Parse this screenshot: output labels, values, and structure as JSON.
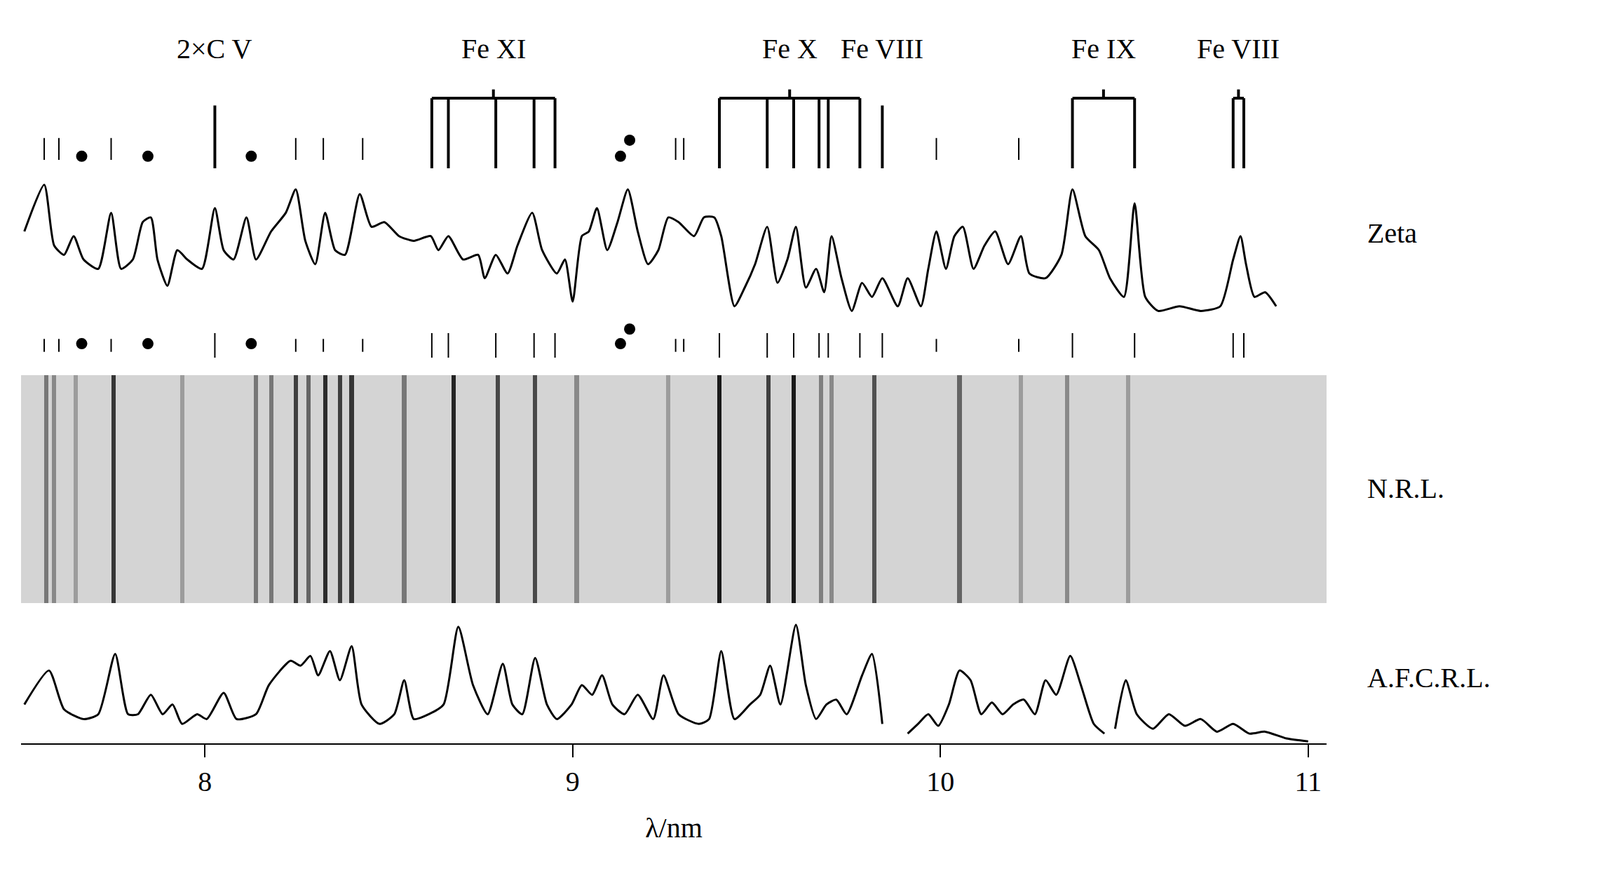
{
  "chart_data": [
    {
      "type": "line",
      "title": "Zeta",
      "color": "#000000",
      "tick_labels": false,
      "xlim": [
        7.5,
        11.05
      ],
      "xticks": [
        8,
        9,
        10,
        11
      ],
      "ylim": [
        0,
        150
      ],
      "x": [
        7.509,
        7.563,
        7.59,
        7.617,
        7.643,
        7.67,
        7.71,
        7.745,
        7.772,
        7.804,
        7.831,
        7.853,
        7.871,
        7.898,
        7.925,
        7.952,
        7.992,
        8.027,
        8.051,
        8.078,
        8.113,
        8.139,
        8.18,
        8.22,
        8.247,
        8.273,
        8.3,
        8.327,
        8.354,
        8.381,
        8.421,
        8.453,
        8.488,
        8.528,
        8.568,
        8.614,
        8.635,
        8.662,
        8.702,
        8.743,
        8.761,
        8.791,
        8.823,
        8.85,
        8.89,
        8.917,
        8.957,
        8.979,
        9.0,
        9.025,
        9.044,
        9.066,
        9.094,
        9.122,
        9.15,
        9.177,
        9.205,
        9.233,
        9.26,
        9.288,
        9.33,
        9.357,
        9.385,
        9.404,
        9.44,
        9.468,
        9.496,
        9.529,
        9.557,
        9.584,
        9.607,
        9.634,
        9.662,
        9.684,
        9.704,
        9.731,
        9.759,
        9.787,
        9.814,
        9.842,
        9.884,
        9.911,
        9.947,
        9.967,
        9.989,
        10.015,
        10.038,
        10.061,
        10.09,
        10.12,
        10.149,
        10.184,
        10.219,
        10.242,
        10.286,
        10.329,
        10.359,
        10.394,
        10.431,
        10.461,
        10.499,
        10.528,
        10.557,
        10.592,
        10.65,
        10.708,
        10.761,
        10.796,
        10.816,
        10.831,
        10.854,
        10.883,
        10.913
      ],
      "values": [
        90,
        140,
        75,
        65,
        85,
        60,
        50,
        110,
        50,
        60,
        100,
        105,
        60,
        32,
        70,
        60,
        50,
        115,
        70,
        60,
        105,
        60,
        90,
        110,
        135,
        80,
        55,
        110,
        70,
        65,
        130,
        95,
        100,
        85,
        80,
        85,
        70,
        85,
        60,
        65,
        40,
        65,
        45,
        75,
        110,
        70,
        45,
        60,
        15,
        85,
        90,
        115,
        70,
        100,
        135,
        90,
        55,
        70,
        105,
        100,
        85,
        105,
        105,
        85,
        10,
        30,
        55,
        95,
        35,
        60,
        95,
        30,
        50,
        25,
        85,
        40,
        5,
        35,
        20,
        40,
        10,
        40,
        10,
        50,
        90,
        50,
        85,
        95,
        50,
        75,
        90,
        55,
        85,
        45,
        40,
        65,
        135,
        85,
        70,
        40,
        20,
        120,
        20,
        5,
        10,
        5,
        10,
        60,
        85,
        55,
        20,
        25,
        10
      ],
      "line_ids": [
        {
          "label": "2×C V",
          "x": [
            8.027
          ]
        },
        {
          "label": "Fe XI",
          "x": [
            8.617,
            8.662,
            8.791,
            8.895,
            8.952
          ]
        },
        {
          "label": "Fe X",
          "x": [
            9.399,
            9.529,
            9.601,
            9.67,
            9.695,
            9.781
          ]
        },
        {
          "label": "Fe VIII",
          "x": [
            9.842
          ]
        },
        {
          "label": "Fe IX",
          "x": [
            10.359,
            10.528
          ]
        },
        {
          "label": "Fe VIII",
          "x": [
            10.796,
            10.825
          ]
        }
      ],
      "unidentified": [
        7.563,
        7.603,
        7.745,
        8.247,
        8.322,
        8.429,
        9.28,
        9.302,
        9.989,
        10.213
      ],
      "dots": [
        7.665,
        7.845,
        8.126,
        9.13,
        9.155
      ]
    },
    {
      "type": "bar",
      "title": "N.R.L.",
      "color": "#191919",
      "tick_labels": false,
      "xlim": [
        7.5,
        11.05
      ],
      "xticks": [
        8,
        9,
        10,
        11
      ],
      "ylim": [
        0,
        1
      ],
      "x": [
        7.568,
        7.59,
        7.649,
        7.751,
        7.938,
        8.139,
        8.18,
        8.247,
        8.282,
        8.327,
        8.367,
        8.399,
        8.542,
        8.676,
        8.796,
        8.898,
        9.011,
        9.26,
        9.399,
        9.532,
        9.601,
        9.676,
        9.704,
        9.82,
        10.052,
        10.219,
        10.344,
        10.51
      ],
      "values": [
        0.5,
        0.4,
        0.3,
        0.85,
        0.3,
        0.5,
        0.5,
        0.8,
        0.6,
        0.9,
        0.8,
        0.85,
        0.5,
        0.95,
        0.75,
        0.75,
        0.4,
        0.3,
        1.0,
        0.8,
        1.0,
        0.45,
        0.4,
        0.7,
        0.6,
        0.3,
        0.4,
        0.3
      ]
    },
    {
      "type": "line",
      "title": "A.F.C.R.L.",
      "color": "#000000",
      "tick_labels": "x",
      "xlabel": "λ/nm",
      "xlim": [
        7.5,
        11.05
      ],
      "xticks": [
        8,
        9,
        10,
        11
      ],
      "ylim": [
        0,
        130
      ],
      "x": [
        7.509,
        7.576,
        7.617,
        7.67,
        7.71,
        7.756,
        7.791,
        7.818,
        7.853,
        7.885,
        7.912,
        7.938,
        7.979,
        8.005,
        8.051,
        8.086,
        8.139,
        8.174,
        8.233,
        8.26,
        8.287,
        8.308,
        8.34,
        8.367,
        8.399,
        8.426,
        8.475,
        8.515,
        8.542,
        8.568,
        8.609,
        8.649,
        8.689,
        8.729,
        8.769,
        8.81,
        8.836,
        8.863,
        8.898,
        8.93,
        8.957,
        8.997,
        9.025,
        9.053,
        9.08,
        9.108,
        9.141,
        9.177,
        9.219,
        9.247,
        9.288,
        9.343,
        9.371,
        9.404,
        9.44,
        9.482,
        9.51,
        9.537,
        9.565,
        9.607,
        9.634,
        9.662,
        9.69,
        9.717,
        9.745,
        9.787,
        9.814,
        9.842,
        9.87,
        9.911,
        9.939,
        9.967,
        9.994,
        10.023,
        10.052,
        10.082,
        10.111,
        10.14,
        10.169,
        10.198,
        10.227,
        10.257,
        10.286,
        10.315,
        10.353,
        10.382,
        10.417,
        10.446,
        10.46,
        10.475,
        10.504,
        10.534,
        10.578,
        10.621,
        10.665,
        10.708,
        10.752,
        10.796,
        10.84,
        10.883,
        10.941,
        11.0
      ],
      "values": [
        40,
        75,
        35,
        25,
        30,
        92,
        30,
        30,
        50,
        30,
        40,
        20,
        30,
        25,
        52,
        25,
        30,
        60,
        85,
        80,
        90,
        70,
        95,
        65,
        100,
        40,
        20,
        30,
        65,
        25,
        30,
        40,
        120,
        60,
        30,
        82,
        40,
        30,
        88,
        40,
        25,
        40,
        60,
        50,
        70,
        40,
        30,
        50,
        25,
        70,
        30,
        20,
        25,
        95,
        25,
        40,
        50,
        80,
        40,
        122,
        60,
        25,
        40,
        45,
        30,
        70,
        92,
        20,
        null,
        10,
        20,
        30,
        18,
        40,
        75,
        65,
        30,
        42,
        30,
        40,
        45,
        30,
        65,
        50,
        90,
        60,
        20,
        10,
        null,
        15,
        65,
        30,
        15,
        30,
        18,
        25,
        12,
        20,
        10,
        12,
        5,
        2
      ]
    }
  ]
}
